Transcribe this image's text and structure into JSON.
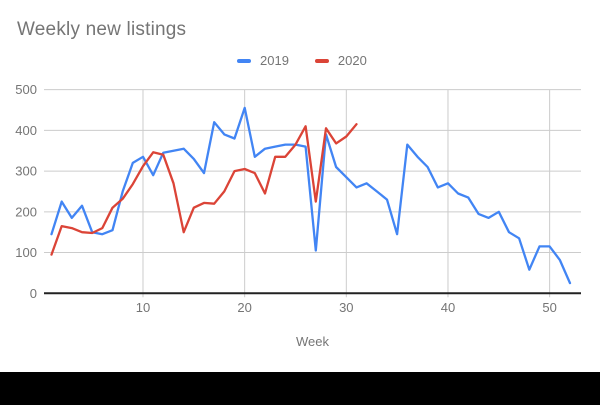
{
  "chart_data": {
    "type": "line",
    "title": "Weekly new listings",
    "xlabel": "Week",
    "ylabel": "",
    "x_unit": "week",
    "x_start": 1,
    "x_ticks": [
      10,
      20,
      30,
      40,
      50
    ],
    "y_ticks": [
      0,
      100,
      200,
      300,
      400,
      500
    ],
    "ylim": [
      0,
      500
    ],
    "xlim": [
      0,
      53
    ],
    "grid": true,
    "legend_position": "top-center",
    "series": [
      {
        "name": "2019",
        "color": "#4285F4",
        "values": [
          145,
          225,
          185,
          215,
          150,
          145,
          155,
          250,
          320,
          335,
          290,
          345,
          350,
          355,
          330,
          295,
          420,
          390,
          380,
          455,
          335,
          355,
          360,
          365,
          365,
          360,
          105,
          390,
          310,
          285,
          260,
          270,
          250,
          230,
          145,
          365,
          335,
          310,
          260,
          270,
          245,
          235,
          195,
          185,
          200,
          150,
          135,
          58,
          115,
          115,
          82,
          25
        ]
      },
      {
        "name": "2020",
        "color": "#DB4437",
        "values": [
          95,
          165,
          160,
          150,
          148,
          160,
          210,
          232,
          268,
          312,
          346,
          340,
          270,
          150,
          210,
          222,
          220,
          250,
          300,
          305,
          295,
          245,
          335,
          335,
          365,
          410,
          225,
          405,
          368,
          385,
          415
        ]
      }
    ],
    "theme": {
      "background": "#ffffff",
      "grid_color": "#cccccc",
      "axis_color": "#222222",
      "tick_text_color": "#757575",
      "title_color": "#757575",
      "letterbox_color": "#000000"
    }
  },
  "legend": {
    "item1": "2019",
    "item2": "2020"
  }
}
